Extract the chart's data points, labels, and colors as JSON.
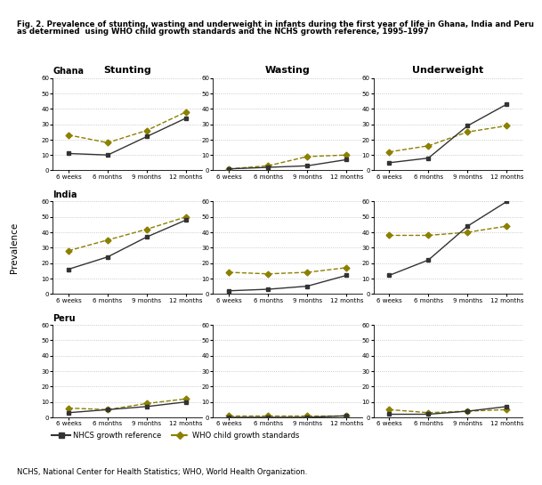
{
  "title_line1": "Fig. 2. Prevalence of stunting, wasting and underweight in infants during the first year of life in Ghana, India and Peru",
  "title_line2": "as determined  using WHO child growth standards and the NCHS growth reference, 1995–1997",
  "col_labels": [
    "Stunting",
    "Wasting",
    "Underweight"
  ],
  "row_labels": [
    "Ghana",
    "India",
    "Peru"
  ],
  "x_labels": [
    "6 weeks",
    "6 months",
    "9 months",
    "12 months"
  ],
  "ylabel": "Prevalence",
  "nhcs_color": "#333333",
  "who_color": "#8B8000",
  "data": {
    "Ghana": {
      "Stunting": {
        "nhcs": [
          11,
          10,
          22,
          34
        ],
        "who": [
          23,
          18,
          26,
          38
        ]
      },
      "Wasting": {
        "nhcs": [
          1,
          2,
          3,
          7
        ],
        "who": [
          1,
          3,
          9,
          10
        ]
      },
      "Underweight": {
        "nhcs": [
          5,
          8,
          29,
          43
        ],
        "who": [
          12,
          16,
          25,
          29
        ]
      }
    },
    "India": {
      "Stunting": {
        "nhcs": [
          16,
          24,
          37,
          48
        ],
        "who": [
          28,
          35,
          42,
          50
        ]
      },
      "Wasting": {
        "nhcs": [
          2,
          3,
          5,
          12
        ],
        "who": [
          14,
          13,
          14,
          17
        ]
      },
      "Underweight": {
        "nhcs": [
          12,
          22,
          44,
          60
        ],
        "who": [
          38,
          38,
          40,
          44
        ]
      }
    },
    "Peru": {
      "Stunting": {
        "nhcs": [
          3,
          5,
          7,
          10
        ],
        "who": [
          6,
          5,
          9,
          12
        ]
      },
      "Wasting": {
        "nhcs": [
          0,
          0,
          0,
          1
        ],
        "who": [
          1,
          1,
          1,
          1
        ]
      },
      "Underweight": {
        "nhcs": [
          2,
          2,
          4,
          7
        ],
        "who": [
          5,
          3,
          4,
          5
        ]
      }
    }
  },
  "ylim": [
    0,
    60
  ],
  "yticks": [
    0,
    10,
    20,
    30,
    40,
    50,
    60
  ],
  "footnote": "NCHS, National Center for Health Statistics; WHO, World Health Organization.",
  "legend_nhcs": "NHCS growth reference",
  "legend_who": "WHO child growth standards",
  "top_bar_color": "#A89000",
  "background_color": "#ffffff",
  "title_prefix": "Fig. 2.",
  "title_bold_start": "Prevalence of stunting, wasting and underweight in infants during the first year of life in Ghana, India and Peru"
}
